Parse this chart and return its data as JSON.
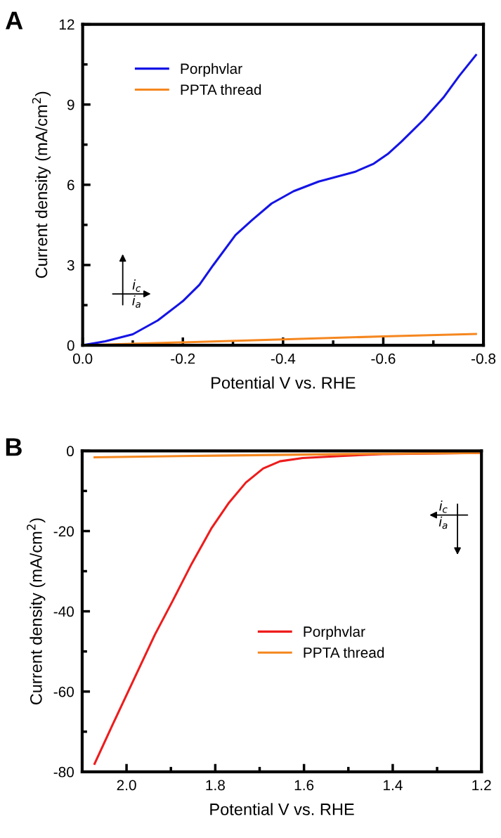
{
  "chart_data": [
    {
      "type": "line",
      "xlabel": "Potential V vs. RHE",
      "ylabel": "Current density (mA/cm$^{2}$)",
      "xlim": [
        0,
        -0.8
      ],
      "ylim": [
        0,
        12
      ],
      "xticks": [
        {
          "value": 0,
          "label": "0.0"
        },
        {
          "value": -0.2,
          "label": "-0.2"
        },
        {
          "value": -0.4,
          "label": "-0.4"
        },
        {
          "value": -0.6,
          "label": "-0.6"
        },
        {
          "value": -0.8,
          "label": "-0.8"
        }
      ],
      "yticks": [
        0,
        3,
        6,
        9,
        12
      ],
      "legend": "upper left",
      "grid": false,
      "marker": "none",
      "line_style": "solid",
      "annotations": [
        "A",
        "i$_{c}$",
        "i$_{a}$"
      ],
      "series": [
        {
          "name": "Porphvlar",
          "color": "#1414e6",
          "x": [
            0,
            -0.045,
            -0.1,
            -0.15,
            -0.2,
            -0.233,
            -0.26,
            -0.305,
            -0.338,
            -0.377,
            -0.421,
            -0.471,
            -0.543,
            -0.581,
            -0.609,
            -0.636,
            -0.681,
            -0.72,
            -0.752,
            -0.785
          ],
          "values": [
            0,
            0.15,
            0.41,
            0.93,
            1.65,
            2.26,
            2.98,
            4.12,
            4.68,
            5.3,
            5.76,
            6.12,
            6.48,
            6.79,
            7.15,
            7.61,
            8.44,
            9.26,
            10.08,
            10.85
          ]
        },
        {
          "name": "PPTA thread",
          "color": "#f5871f",
          "x": [
            0,
            -0.2,
            -0.4,
            -0.6,
            -0.785
          ],
          "values": [
            0,
            0.11,
            0.22,
            0.33,
            0.42
          ]
        }
      ]
    },
    {
      "type": "line",
      "xlabel": "Potential V vs. RHE",
      "ylabel": "Current density (mA/cm$^{2}$)",
      "xlim": [
        2.1,
        1.2
      ],
      "ylim": [
        -80,
        0
      ],
      "xticks": [
        {
          "value": 2.0,
          "label": "2.0"
        },
        {
          "value": 1.8,
          "label": "1.8"
        },
        {
          "value": 1.6,
          "label": "1.6"
        },
        {
          "value": 1.4,
          "label": "1.4"
        },
        {
          "value": 1.2,
          "label": "1.2"
        }
      ],
      "yticks": [
        {
          "value": -80,
          "label": "-80"
        },
        {
          "value": -60,
          "label": "-60"
        },
        {
          "value": -40,
          "label": "-40"
        },
        {
          "value": -20,
          "label": "-20"
        },
        0
      ],
      "legend": "center",
      "grid": false,
      "marker": "none",
      "line_style": "solid",
      "annotations": [
        "B",
        "i$_{c}$",
        "i$_{a}$"
      ],
      "series": [
        {
          "name": "Porphvlar",
          "color": "#ee1c1c",
          "x": [
            2.072,
            2.032,
            1.987,
            1.936,
            1.897,
            1.853,
            1.808,
            1.769,
            1.731,
            1.692,
            1.654,
            1.603,
            1.519,
            1.423,
            1.202
          ],
          "values": [
            -78.0,
            -68.4,
            -57.8,
            -45.8,
            -37.6,
            -28.1,
            -19.2,
            -12.9,
            -7.9,
            -4.4,
            -2.6,
            -1.8,
            -1.3,
            -0.8,
            -0.5
          ]
        },
        {
          "name": "PPTA thread",
          "color": "#f5871f",
          "x": [
            2.072,
            1.8,
            1.5,
            1.202
          ],
          "values": [
            -1.6,
            -1.2,
            -0.8,
            -0.5
          ]
        }
      ]
    }
  ]
}
